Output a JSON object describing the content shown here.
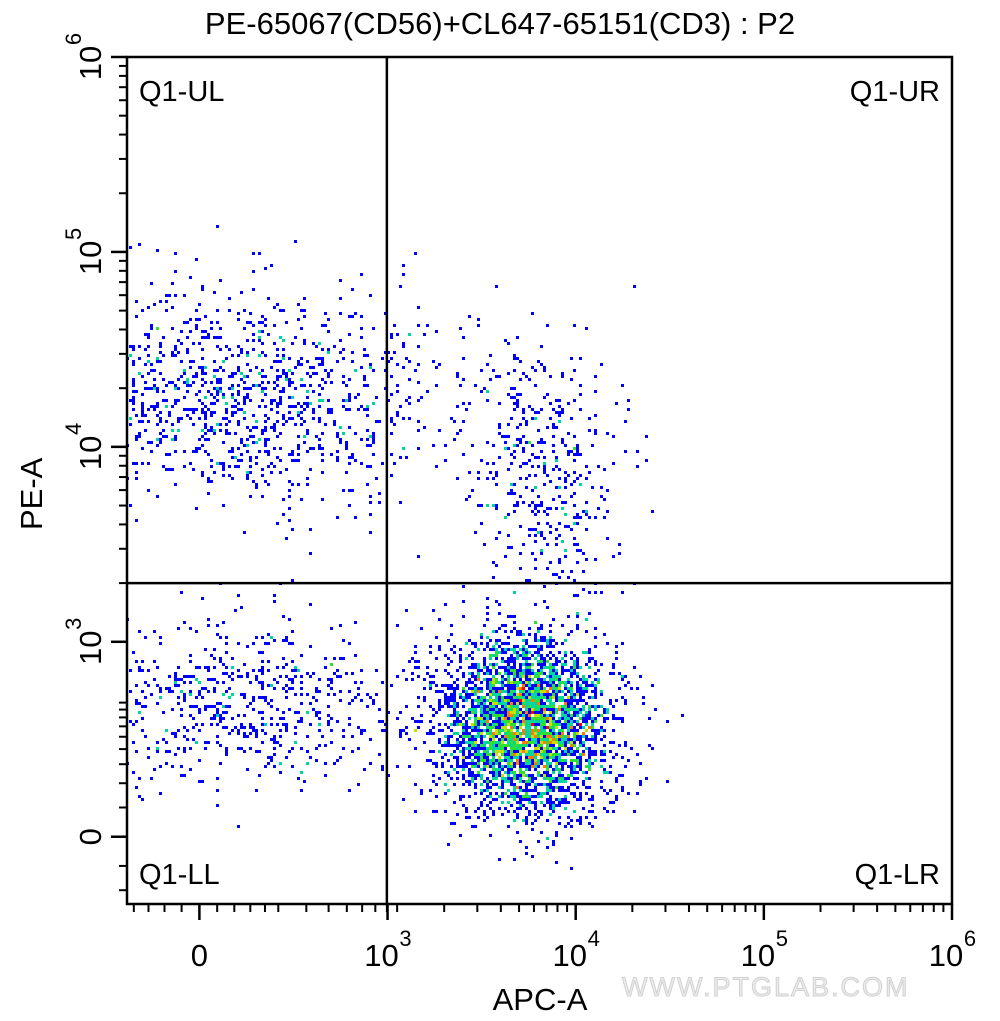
{
  "chart_data": {
    "type": "scatter",
    "subtype": "flow-cytometry-density-dot-plot",
    "title": "PE-65067(CD56)+CL647-65151(CD3) : P2",
    "xlabel": "APC-A",
    "ylabel": "PE-A",
    "x_scale": "biexponential",
    "y_scale": "biexponential",
    "x_ticks": [
      {
        "value": 0,
        "label": "0"
      },
      {
        "value": 1000,
        "label": "10",
        "exp": "3"
      },
      {
        "value": 10000,
        "label": "10",
        "exp": "4"
      },
      {
        "value": 100000,
        "label": "10",
        "exp": "5"
      },
      {
        "value": 1000000,
        "label": "10",
        "exp": "6"
      }
    ],
    "y_ticks": [
      {
        "value": 0,
        "label": "0"
      },
      {
        "value": 1000,
        "label": "10",
        "exp": "3"
      },
      {
        "value": 10000,
        "label": "10",
        "exp": "4"
      },
      {
        "value": 100000,
        "label": "10",
        "exp": "5"
      },
      {
        "value": 1000000,
        "label": "10",
        "exp": "6"
      }
    ],
    "grid": false,
    "quadrant_gate": {
      "x": 800,
      "y": 2000
    },
    "quadrant_labels": {
      "UL": "Q1-UL",
      "UR": "Q1-UR",
      "LL": "Q1-LL",
      "LR": "Q1-LR"
    },
    "populations": [
      {
        "name_hint": "upper-left cluster",
        "x_center": 100,
        "x_sd_disp": 0.55,
        "y_center": 18000,
        "y_sd_log": 0.28,
        "count": 1150
      },
      {
        "name_hint": "lower-left cluster",
        "x_center": 100,
        "x_sd_disp": 0.55,
        "y_center": 900,
        "y_sd_disp": 0.22,
        "count": 700
      },
      {
        "name_hint": "lower-right cluster",
        "x_center": 5500,
        "x_sd_log": 0.22,
        "y_center": 600,
        "y_sd_disp": 0.22,
        "count": 3600
      },
      {
        "name_hint": "upper-right cluster",
        "x_center": 7000,
        "x_sd_log": 0.2,
        "y_center": 7000,
        "y_sd_log": 0.35,
        "count": 420
      }
    ],
    "colormap": [
      "#0000ff",
      "#00b4ff",
      "#00d6a0",
      "#30e030",
      "#c8e000",
      "#ff7800",
      "#ff0000"
    ]
  },
  "watermark": "WWW.PTGLAB.COM"
}
